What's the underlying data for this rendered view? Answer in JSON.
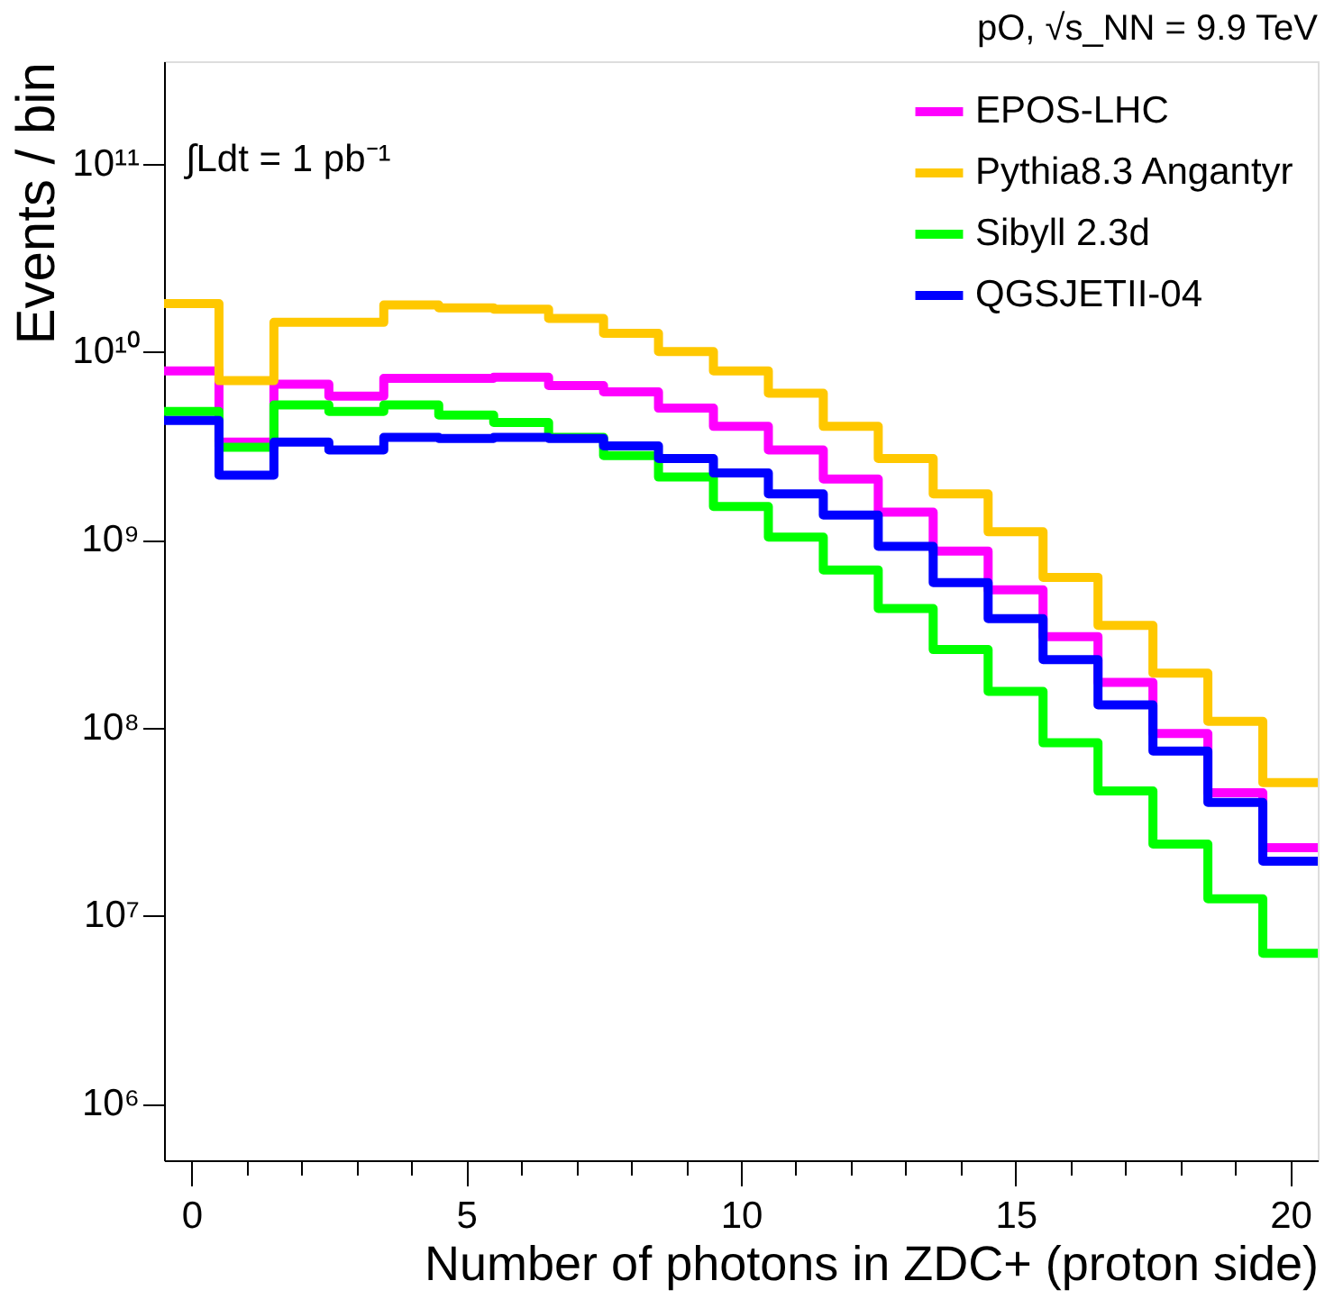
{
  "chart_data": {
    "type": "histogram",
    "title": "pO, √s_NN = 9.9 TeV",
    "xlabel": "Number of photons in ZDC+ (proton side)",
    "ylabel": "Events / bin",
    "annotations": [
      "∫Ldt = 1 pb⁻¹"
    ],
    "bins": [
      -0.5,
      0.5,
      1.5,
      2.5,
      3.5,
      4.5,
      5.5,
      6.5,
      7.5,
      8.5,
      9.5,
      10.5,
      11.5,
      12.5,
      13.5,
      14.5,
      15.5,
      16.5,
      17.5,
      18.5,
      19.5,
      20.5
    ],
    "series": [
      {
        "name": "EPOS-LHC",
        "color": "#ff00ff",
        "values": [
          7900000000.0,
          3300000000.0,
          6700000000.0,
          5800000000.0,
          7200000000.0,
          7200000000.0,
          7300000000.0,
          6600000000.0,
          6100000000.0,
          5000000000.0,
          4000000000.0,
          3000000000.0,
          2100000000.0,
          1400000000.0,
          870000000.0,
          540000000.0,
          305000000.0,
          174000000.0,
          93000000.0,
          45000000.0,
          23000000.0
        ]
      },
      {
        "name": "Pythia8.3 Angantyr",
        "color": "#ffc800",
        "values": [
          18000000000.0,
          7000000000.0,
          14300000000.0,
          14300000000.0,
          17700000000.0,
          17100000000.0,
          16800000000.0,
          15000000000.0,
          12500000000.0,
          10000000000.0,
          7900000000.0,
          6000000000.0,
          4000000000.0,
          2700000000.0,
          1750000000.0,
          1100000000.0,
          630000000.0,
          350000000.0,
          195000000.0,
          108000000.0,
          51000000.0
        ]
      },
      {
        "name": "Sibyll 2.3d",
        "color": "#00ff00",
        "values": [
          4800000000.0,
          3100000000.0,
          5200000000.0,
          4800000000.0,
          5200000000.0,
          4600000000.0,
          4200000000.0,
          3500000000.0,
          2800000000.0,
          2150000000.0,
          1500000000.0,
          1030000000.0,
          690000000.0,
          430000000.0,
          260000000.0,
          156000000.0,
          83000000.0,
          46000000.0,
          24000000.0,
          12300000.0,
          6300000.0
        ]
      },
      {
        "name": "QGSJETII-04",
        "color": "#0000ff",
        "values": [
          4300000000.0,
          2200000000.0,
          3300000000.0,
          3000000000.0,
          3500000000.0,
          3450000000.0,
          3500000000.0,
          3450000000.0,
          3150000000.0,
          2700000000.0,
          2260000000.0,
          1750000000.0,
          1350000000.0,
          920000000.0,
          590000000.0,
          380000000.0,
          230000000.0,
          132000000.0,
          75000000.0,
          40000000.0,
          19500000.0
        ]
      }
    ],
    "xlim": [
      -0.5,
      20.5
    ],
    "xticks": [
      0,
      {
        "value": 1,
        "label": null
      },
      {
        "value": 2,
        "label": null
      },
      {
        "value": 3,
        "label": null
      },
      {
        "value": 4,
        "label": null
      },
      5,
      {
        "value": 6,
        "label": null
      },
      {
        "value": 7,
        "label": null
      },
      {
        "value": 8,
        "label": null
      },
      {
        "value": 9,
        "label": null
      },
      10,
      {
        "value": 11,
        "label": null
      },
      {
        "value": 12,
        "label": null
      },
      {
        "value": 13,
        "label": null
      },
      {
        "value": 14,
        "label": null
      },
      15,
      {
        "value": 16,
        "label": null
      },
      {
        "value": 17,
        "label": null
      },
      {
        "value": 18,
        "label": null
      },
      {
        "value": 19,
        "label": null
      },
      20
    ],
    "ylim": [
      500000.0,
      350000000000.0
    ],
    "yticks": [
      {
        "value": 1000000.0,
        "label": "10⁶"
      },
      {
        "value": 10000000.0,
        "label": "10⁷"
      },
      {
        "value": 100000000.0,
        "label": "10⁸"
      },
      {
        "value": 1000000000.0,
        "label": "10⁹"
      },
      {
        "value": 10000000000.0,
        "label": "10¹⁰"
      },
      {
        "value": 100000000000.0,
        "label": "10¹¹"
      }
    ],
    "log": true,
    "legend": "top right"
  }
}
